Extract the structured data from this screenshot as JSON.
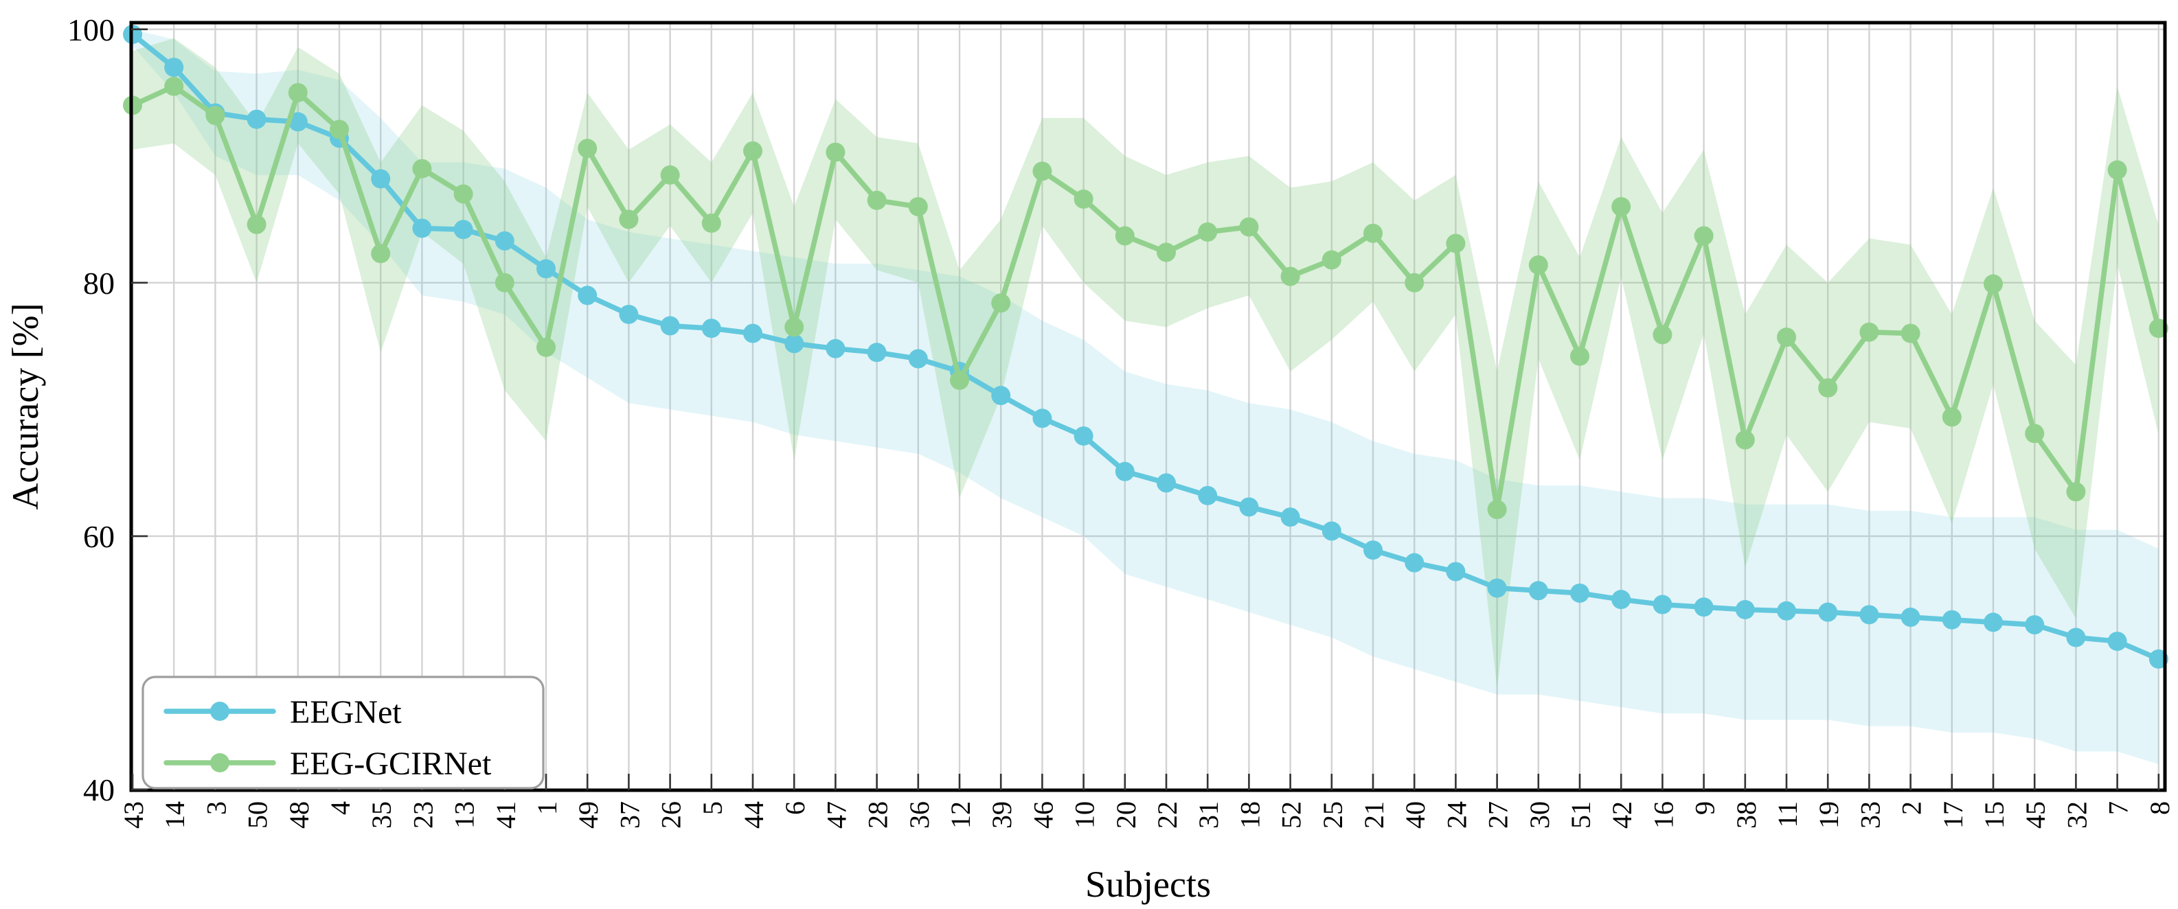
{
  "chart_data": {
    "type": "line",
    "title": "",
    "xlabel": "Subjects",
    "ylabel": "Accuracy [%]",
    "ylim": [
      40,
      100
    ],
    "yticks": [
      "40",
      "60",
      "80",
      "100"
    ],
    "grid": true,
    "grid_color": "#d3d3d3",
    "spine_color": "#000000",
    "tick_color": "#333333",
    "legend_position": "lower-left",
    "legend_border_color": "#9e9e9e",
    "categories": [
      "43",
      "14",
      "3",
      "50",
      "48",
      "4",
      "35",
      "23",
      "13",
      "41",
      "1",
      "49",
      "37",
      "26",
      "5",
      "44",
      "6",
      "47",
      "28",
      "36",
      "12",
      "39",
      "46",
      "10",
      "20",
      "22",
      "31",
      "18",
      "52",
      "25",
      "21",
      "40",
      "24",
      "27",
      "30",
      "51",
      "42",
      "16",
      "9",
      "38",
      "11",
      "19",
      "33",
      "2",
      "17",
      "15",
      "45",
      "32",
      "7",
      "8"
    ],
    "series": [
      {
        "name": "EEGNet",
        "color": "#63c8de",
        "band_color": "rgba(102,200,222,0.18)",
        "values": [
          99.6,
          97.0,
          93.4,
          92.9,
          92.7,
          91.4,
          88.2,
          84.3,
          84.2,
          83.3,
          81.1,
          79.0,
          77.5,
          76.6,
          76.4,
          76.0,
          75.2,
          74.8,
          74.5,
          74.0,
          73.0,
          71.1,
          69.3,
          67.9,
          65.1,
          64.2,
          63.2,
          62.3,
          61.5,
          60.4,
          58.9,
          57.9,
          57.2,
          55.9,
          55.7,
          55.5,
          55.0,
          54.6,
          54.4,
          54.2,
          54.1,
          54.0,
          53.8,
          53.6,
          53.4,
          53.2,
          53.0,
          52.0,
          51.7,
          50.3
        ],
        "band_lower": [
          98.7,
          95.0,
          90.0,
          88.5,
          88.5,
          86.5,
          83.0,
          79.0,
          78.5,
          77.5,
          74.5,
          72.5,
          70.5,
          70.0,
          69.5,
          69.0,
          68.0,
          67.5,
          67.0,
          66.5,
          65.0,
          63.0,
          61.5,
          60.0,
          57.0,
          56.0,
          55.0,
          54.0,
          53.0,
          52.0,
          50.5,
          49.5,
          48.5,
          47.5,
          47.5,
          47.0,
          46.5,
          46.0,
          46.0,
          45.5,
          45.5,
          45.5,
          45.0,
          45.0,
          44.5,
          44.5,
          44.0,
          43.0,
          43.0,
          42.0
        ],
        "band_upper": [
          100.0,
          99.2,
          96.7,
          96.5,
          96.8,
          96.0,
          93.0,
          89.5,
          89.5,
          89.0,
          87.5,
          85.0,
          84.0,
          83.5,
          83.0,
          82.5,
          82.0,
          81.5,
          81.5,
          81.0,
          80.5,
          79.0,
          77.0,
          75.5,
          73.0,
          72.0,
          71.5,
          70.5,
          70.0,
          69.0,
          67.5,
          66.5,
          66.0,
          64.5,
          64.0,
          64.0,
          63.5,
          63.0,
          63.0,
          62.5,
          62.5,
          62.5,
          62.0,
          62.0,
          61.5,
          61.5,
          61.5,
          60.5,
          60.5,
          59.0
        ]
      },
      {
        "name": "EEG-GCIRNet",
        "color": "#92d18d",
        "band_color": "rgba(140,205,135,0.30)",
        "values": [
          94.0,
          95.5,
          93.2,
          84.6,
          95.0,
          92.1,
          82.3,
          89.0,
          87.0,
          80.0,
          74.9,
          90.6,
          85.0,
          88.5,
          84.7,
          90.4,
          76.5,
          90.3,
          86.5,
          86.0,
          72.3,
          78.4,
          88.8,
          86.6,
          83.7,
          82.4,
          84.0,
          84.4,
          80.5,
          81.8,
          83.9,
          80.0,
          83.1,
          62.1,
          81.4,
          74.2,
          86.0,
          75.9,
          83.7,
          67.6,
          75.7,
          71.7,
          76.1,
          76.0,
          69.4,
          79.9,
          68.1,
          63.5,
          88.9,
          76.4
        ],
        "band_lower": [
          90.5,
          91.0,
          88.5,
          80.0,
          91.0,
          87.0,
          74.5,
          84.0,
          81.5,
          71.5,
          67.5,
          86.0,
          80.0,
          84.5,
          80.0,
          85.5,
          66.0,
          85.0,
          81.0,
          80.0,
          63.0,
          71.0,
          84.5,
          80.0,
          77.0,
          76.5,
          78.0,
          79.0,
          73.0,
          75.5,
          78.5,
          73.0,
          77.5,
          48.0,
          74.0,
          66.0,
          80.5,
          66.0,
          76.0,
          57.5,
          68.0,
          63.5,
          69.0,
          68.5,
          61.0,
          72.0,
          59.0,
          53.5,
          81.5,
          68.0
        ],
        "band_upper": [
          98.3,
          99.3,
          97.0,
          92.5,
          98.6,
          96.5,
          89.5,
          94.0,
          92.0,
          88.0,
          82.0,
          95.0,
          90.5,
          92.5,
          89.5,
          95.0,
          86.0,
          94.5,
          91.5,
          91.0,
          81.0,
          85.0,
          93.0,
          93.0,
          90.0,
          88.5,
          89.5,
          90.0,
          87.5,
          88.0,
          89.5,
          86.5,
          88.5,
          73.0,
          88.0,
          82.0,
          91.5,
          85.5,
          90.5,
          77.5,
          83.0,
          80.0,
          83.5,
          83.0,
          77.5,
          87.5,
          77.0,
          73.5,
          95.5,
          84.5
        ]
      }
    ]
  }
}
